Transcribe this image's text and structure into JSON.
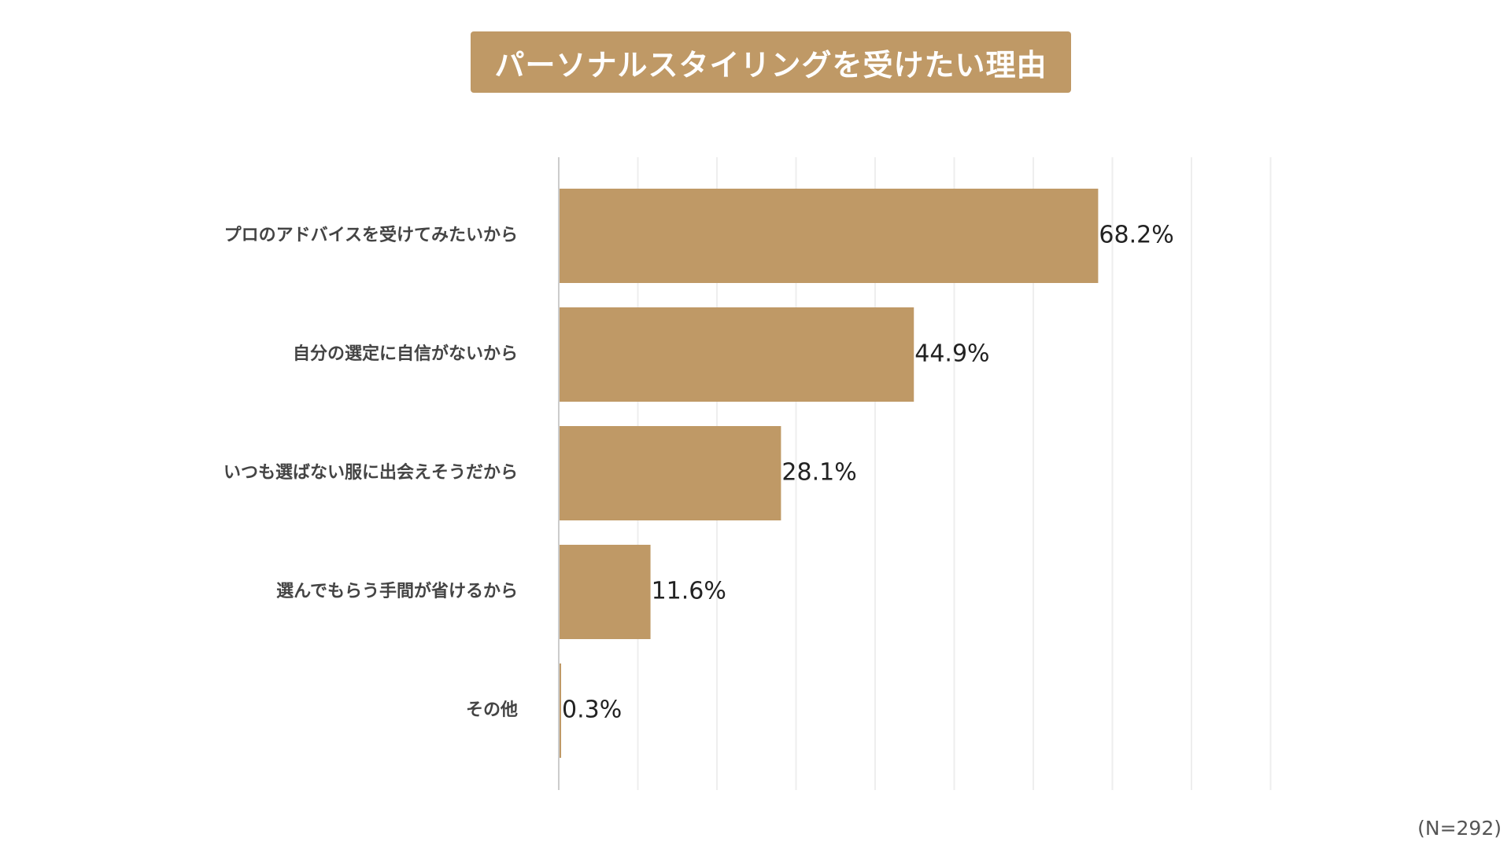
{
  "title": "パーソナルスタイリングを受けたい理由",
  "note": "(N=292)",
  "colors": {
    "bar": "#bf9966",
    "title_bg": "#bf9966",
    "grid": "#eeeeee",
    "axis": "#cccccc",
    "category_text": "#444444",
    "value_text": "#222222"
  },
  "chart_data": {
    "type": "bar",
    "orientation": "horizontal",
    "categories": [
      "プロのアドバイスを受けてみたいから",
      "自分の選定に自信がないから",
      "いつも選ばない服に出会えそうだから",
      "選んでもらう手間が省けるから",
      "その他"
    ],
    "values": [
      68.2,
      44.9,
      28.1,
      11.6,
      0.3
    ],
    "value_labels": [
      "68.2%",
      "44.9%",
      "28.1%",
      "11.6%",
      "0.3%"
    ],
    "xlim": [
      0,
      100
    ],
    "grid": true,
    "gridline_step": 10
  }
}
